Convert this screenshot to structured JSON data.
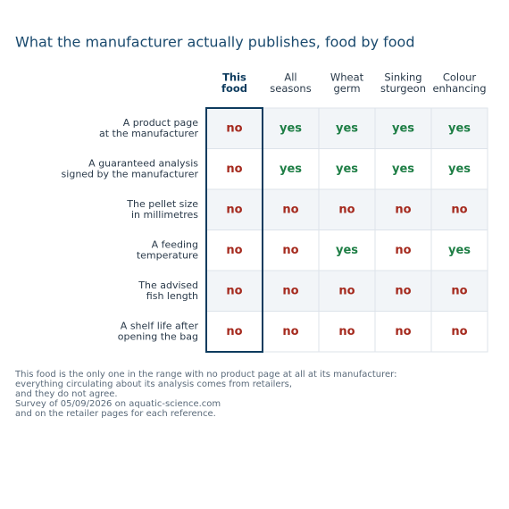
{
  "header": {
    "title": "What the manufacturer actually publishes, food by food"
  },
  "table": {
    "columns": [
      [
        "This",
        "food"
      ],
      [
        "All",
        "seasons"
      ],
      [
        "Wheat",
        "germ"
      ],
      [
        "Sinking",
        "sturgeon"
      ],
      [
        "Colour",
        "enhancing"
      ]
    ],
    "rows": [
      {
        "label": [
          "A product page",
          "at the manufacturer"
        ],
        "cells": [
          "no",
          "yes",
          "yes",
          "yes",
          "yes"
        ]
      },
      {
        "label": [
          "A guaranteed analysis",
          "signed by the manufacturer"
        ],
        "cells": [
          "no",
          "yes",
          "yes",
          "yes",
          "yes"
        ]
      },
      {
        "label": [
          "The pellet size",
          "in millimetres"
        ],
        "cells": [
          "no",
          "no",
          "no",
          "no",
          "no"
        ]
      },
      {
        "label": [
          "A feeding",
          "temperature"
        ],
        "cells": [
          "no",
          "no",
          "yes",
          "no",
          "yes"
        ]
      },
      {
        "label": [
          "The advised",
          "fish length"
        ],
        "cells": [
          "no",
          "no",
          "no",
          "no",
          "no"
        ]
      },
      {
        "label": [
          "A shelf life after",
          "opening the bag"
        ],
        "cells": [
          "no",
          "no",
          "no",
          "no",
          "no"
        ]
      }
    ]
  },
  "notes": [
    "This food is the only one in the range with no product page at all at its manufacturer:",
    "everything circulating about its analysis comes from retailers,",
    "and they do not agree.",
    "Survey of 05/09/2026 on aquatic-science.com",
    "and on the retailer pages for each reference."
  ]
}
